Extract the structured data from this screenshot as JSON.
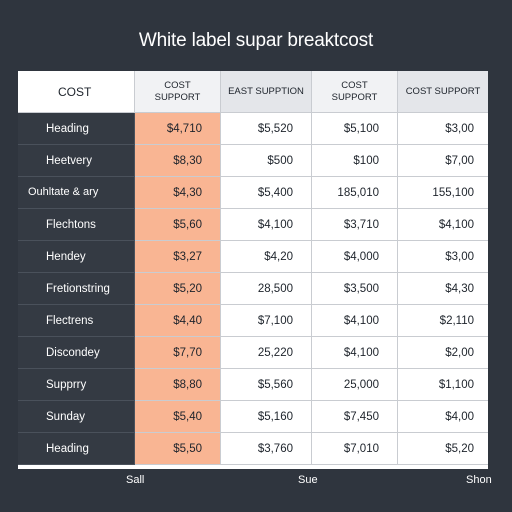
{
  "title": "White label supar breaktcost",
  "header": {
    "row_label": "COST",
    "columns": [
      "COST SUPPORT",
      "EAST SUPPTION",
      "COST SUPPORT",
      "COST SUPPORT"
    ]
  },
  "rows": [
    {
      "label": "Heading",
      "values": [
        "$4,710",
        "$5,520",
        "$5,100",
        "$3,00"
      ]
    },
    {
      "label": "Heetvery",
      "values": [
        "$8,30",
        "$500",
        "$100",
        "$7,00"
      ]
    },
    {
      "label": "Ouhltate & ary",
      "values": [
        "$4,30",
        "$5,400",
        "185,010",
        "155,100"
      ]
    },
    {
      "label": "Flechtons",
      "values": [
        "$5,60",
        "$4,100",
        "$3,710",
        "$4,100"
      ]
    },
    {
      "label": "Hendey",
      "values": [
        "$3,27",
        "$4,20",
        "$4,000",
        "$3,00"
      ]
    },
    {
      "label": "Fretionstring",
      "values": [
        "$5,20",
        "28,500",
        "$3,500",
        "$4,30"
      ]
    },
    {
      "label": "Flectrens",
      "values": [
        "$4,40",
        "$7,100",
        "$4,100",
        "$2,110"
      ]
    },
    {
      "label": "Discondey",
      "values": [
        "$7,70",
        "25,220",
        "$4,100",
        "$2,00"
      ]
    },
    {
      "label": "Supprry",
      "values": [
        "$8,80",
        "$5,560",
        "25,000",
        "$1,100"
      ]
    },
    {
      "label": "Sunday",
      "values": [
        "$5,40",
        "$5,160",
        "$7,450",
        "$4,00"
      ]
    },
    {
      "label": "Heading",
      "values": [
        "$5,50",
        "$3,760",
        "$7,010",
        "$5,20"
      ]
    }
  ],
  "footer": {
    "left": "Sall",
    "middle": "Sue",
    "right": "Shon"
  },
  "colors": {
    "background": "#2f353e",
    "highlight_column": "#f9b593",
    "table": "#ffffff"
  }
}
